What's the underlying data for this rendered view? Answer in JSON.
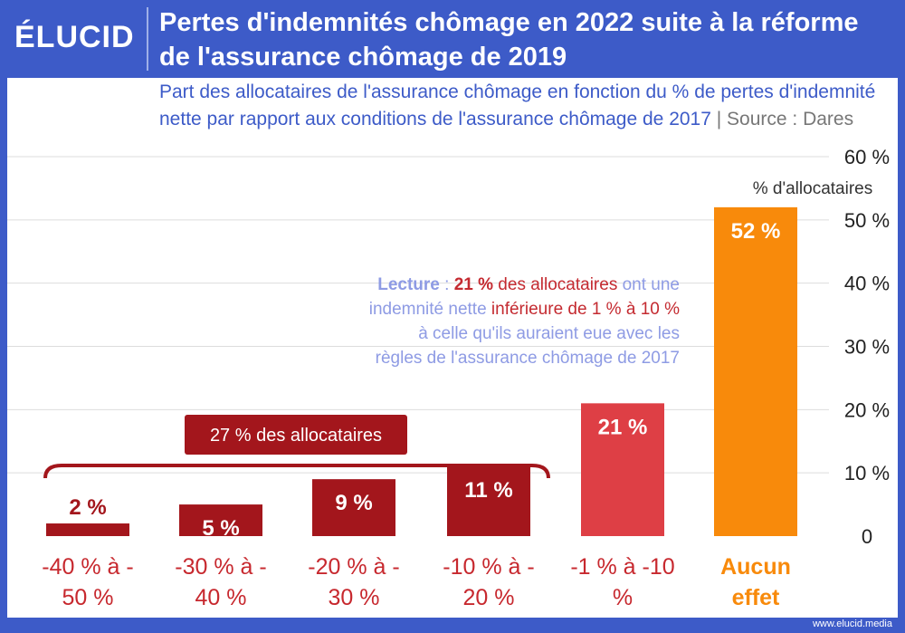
{
  "header": {
    "logo": "ÉLUCID",
    "title": "Pertes d'indemnités chômage en 2022 suite à la réforme de l'assurance chômage de 2019"
  },
  "subtitle": {
    "text": "Part des allocataires de l'assurance chômage en fonction du % de pertes d'indemnité nette par rapport aux conditions de l'assurance chômage de 2017",
    "separator": " | ",
    "source": "Source : Dares"
  },
  "colors": {
    "header_bg": "#3d5bc8",
    "dark_red": "#a3161c",
    "light_red": "#de3f45",
    "orange": "#f88a0b",
    "grid": "#dddddd",
    "lecture_blue": "#8e9be4",
    "lecture_red": "#c42a30"
  },
  "chart_data": {
    "type": "bar",
    "categories": [
      [
        "-40 % à -",
        "50 %"
      ],
      [
        "-30 % à -",
        "40 %"
      ],
      [
        "-20 % à -",
        "30 %"
      ],
      [
        "-10 % à -",
        "20 %"
      ],
      [
        "-1 % à -10",
        "%"
      ],
      [
        "Aucun",
        "effet"
      ]
    ],
    "values": [
      2,
      5,
      9,
      11,
      21,
      52
    ],
    "value_labels": [
      "2 %",
      "5 %",
      "9 %",
      "11 %",
      "21 %",
      "52 %"
    ],
    "bar_colors": [
      "dark_red",
      "dark_red",
      "dark_red",
      "dark_red",
      "light_red",
      "orange"
    ],
    "ylim": [
      0,
      60
    ],
    "yticks": [
      0,
      10,
      20,
      30,
      40,
      50,
      60
    ],
    "ytick_labels": [
      "0",
      "10 %",
      "20 %",
      "30 %",
      "40 %",
      "50 %",
      "60 %"
    ],
    "ylabel": "% d'allocataires",
    "grid": true,
    "bracket_label": "27 % des allocataires"
  },
  "lecture": {
    "lines": [
      [
        {
          "t": "Lecture",
          "c": "lecture_blue",
          "b": true
        },
        {
          "t": " : ",
          "c": "lecture_blue",
          "b": false
        },
        {
          "t": "21 %",
          "c": "lecture_red",
          "b": true
        },
        {
          "t": " des allocataires",
          "c": "lecture_red",
          "b": false
        },
        {
          "t": " ont une",
          "c": "lecture_blue",
          "b": false
        }
      ],
      [
        {
          "t": "indemnité nette ",
          "c": "lecture_blue",
          "b": false
        },
        {
          "t": "inférieure de 1 % à 10 %",
          "c": "lecture_red",
          "b": false
        }
      ],
      [
        {
          "t": "à celle qu'ils auraient eue avec les",
          "c": "lecture_blue",
          "b": false
        }
      ],
      [
        {
          "t": "règles de l'assurance chômage de 2017",
          "c": "lecture_blue",
          "b": false
        }
      ]
    ]
  },
  "footer": {
    "url": "www.elucid.media"
  }
}
